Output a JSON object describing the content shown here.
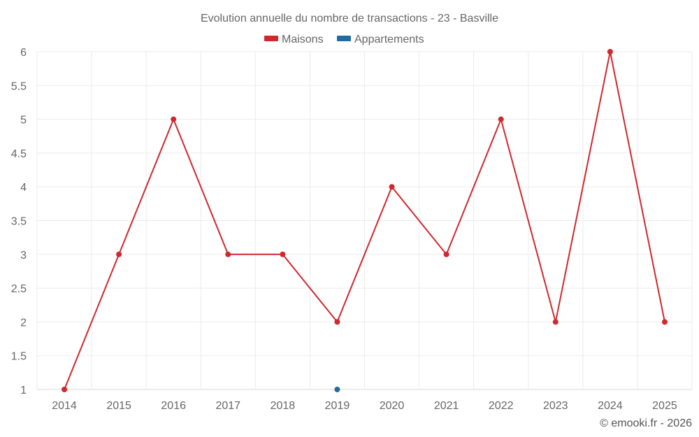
{
  "chart_data": {
    "type": "line",
    "title": "Evolution annuelle du nombre de transactions - 23 - Basville",
    "categories": [
      "2014",
      "2015",
      "2016",
      "2017",
      "2018",
      "2019",
      "2020",
      "2021",
      "2022",
      "2023",
      "2024",
      "2025"
    ],
    "series": [
      {
        "name": "Maisons",
        "color": "#d0282e",
        "values": [
          1,
          3,
          5,
          3,
          3,
          2,
          4,
          3,
          5,
          2,
          6,
          2
        ]
      },
      {
        "name": "Appartements",
        "color": "#1f6da0",
        "values": [
          null,
          null,
          null,
          null,
          null,
          1,
          null,
          null,
          null,
          null,
          null,
          null
        ]
      }
    ],
    "ylim": [
      1,
      6
    ],
    "yticks": [
      "1",
      "1.5",
      "2",
      "2.5",
      "3",
      "3.5",
      "4",
      "4.5",
      "5",
      "5.5",
      "6"
    ],
    "xlabel": "",
    "ylabel": "",
    "grid": true,
    "legend": "top-center"
  },
  "credit": "© emooki.fr - 2026"
}
